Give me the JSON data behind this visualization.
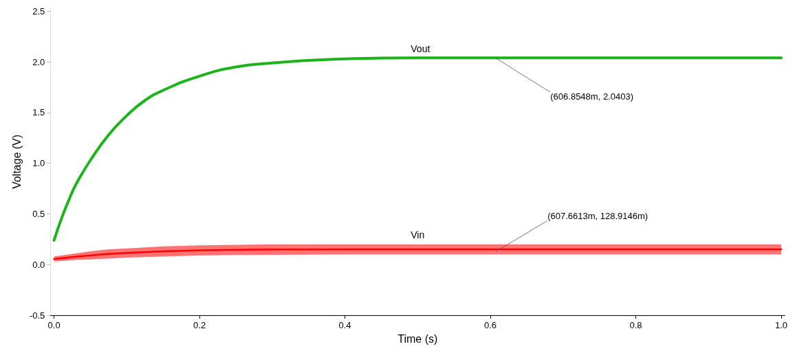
{
  "chart_data": {
    "type": "line",
    "xlabel": "Time (s)",
    "ylabel": "Voltage (V)",
    "x": [
      0,
      0.01,
      0.02,
      0.03,
      0.05,
      0.075,
      0.1,
      0.125,
      0.15,
      0.2,
      0.25,
      0.3,
      0.4,
      0.5,
      0.6,
      0.8,
      1.0
    ],
    "series": [
      {
        "name": "Vout",
        "color": "#1db31d",
        "values": [
          0.24,
          0.45,
          0.63,
          0.79,
          1.03,
          1.28,
          1.47,
          1.62,
          1.72,
          1.86,
          1.95,
          1.99,
          2.03,
          2.04,
          2.04,
          2.04,
          2.04
        ]
      },
      {
        "name": "Vin",
        "color": "#ff0000",
        "values": [
          0.055,
          0.063,
          0.07,
          0.078,
          0.09,
          0.105,
          0.115,
          0.123,
          0.13,
          0.14,
          0.145,
          0.149,
          0.15,
          0.15,
          0.15,
          0.15,
          0.15
        ],
        "lower": [
          0.03,
          0.035,
          0.04,
          0.045,
          0.05,
          0.06,
          0.07,
          0.075,
          0.08,
          0.09,
          0.095,
          0.097,
          0.1,
          0.1,
          0.1,
          0.1,
          0.1
        ],
        "upper": [
          0.08,
          0.09,
          0.1,
          0.11,
          0.13,
          0.15,
          0.16,
          0.17,
          0.18,
          0.19,
          0.195,
          0.2,
          0.2,
          0.2,
          0.2,
          0.2,
          0.2
        ]
      }
    ],
    "xlim": [
      -0.005,
      1.005
    ],
    "xticks": [
      {
        "value": 0,
        "label": "0.0"
      },
      0.2,
      0.4,
      0.6,
      0.8,
      {
        "value": 1,
        "label": "1.0"
      }
    ],
    "ylim": [
      -0.5,
      2.53
    ],
    "yticks": [
      -0.5,
      {
        "value": 0,
        "label": "0.0"
      },
      0.5,
      {
        "value": 1,
        "label": "1.0"
      },
      1.5,
      {
        "value": 2,
        "label": "2.0"
      },
      2.5
    ],
    "annotations": [
      {
        "text": "(606.8548m, 2.0403)",
        "x": 0.6068548,
        "y": 2.0403
      },
      {
        "text": "(607.6613m, 128.9146m)",
        "x": 0.6076613,
        "y": 0.1289146
      }
    ],
    "grid": false,
    "legend": false,
    "marker": "none",
    "line_style": "solid"
  }
}
